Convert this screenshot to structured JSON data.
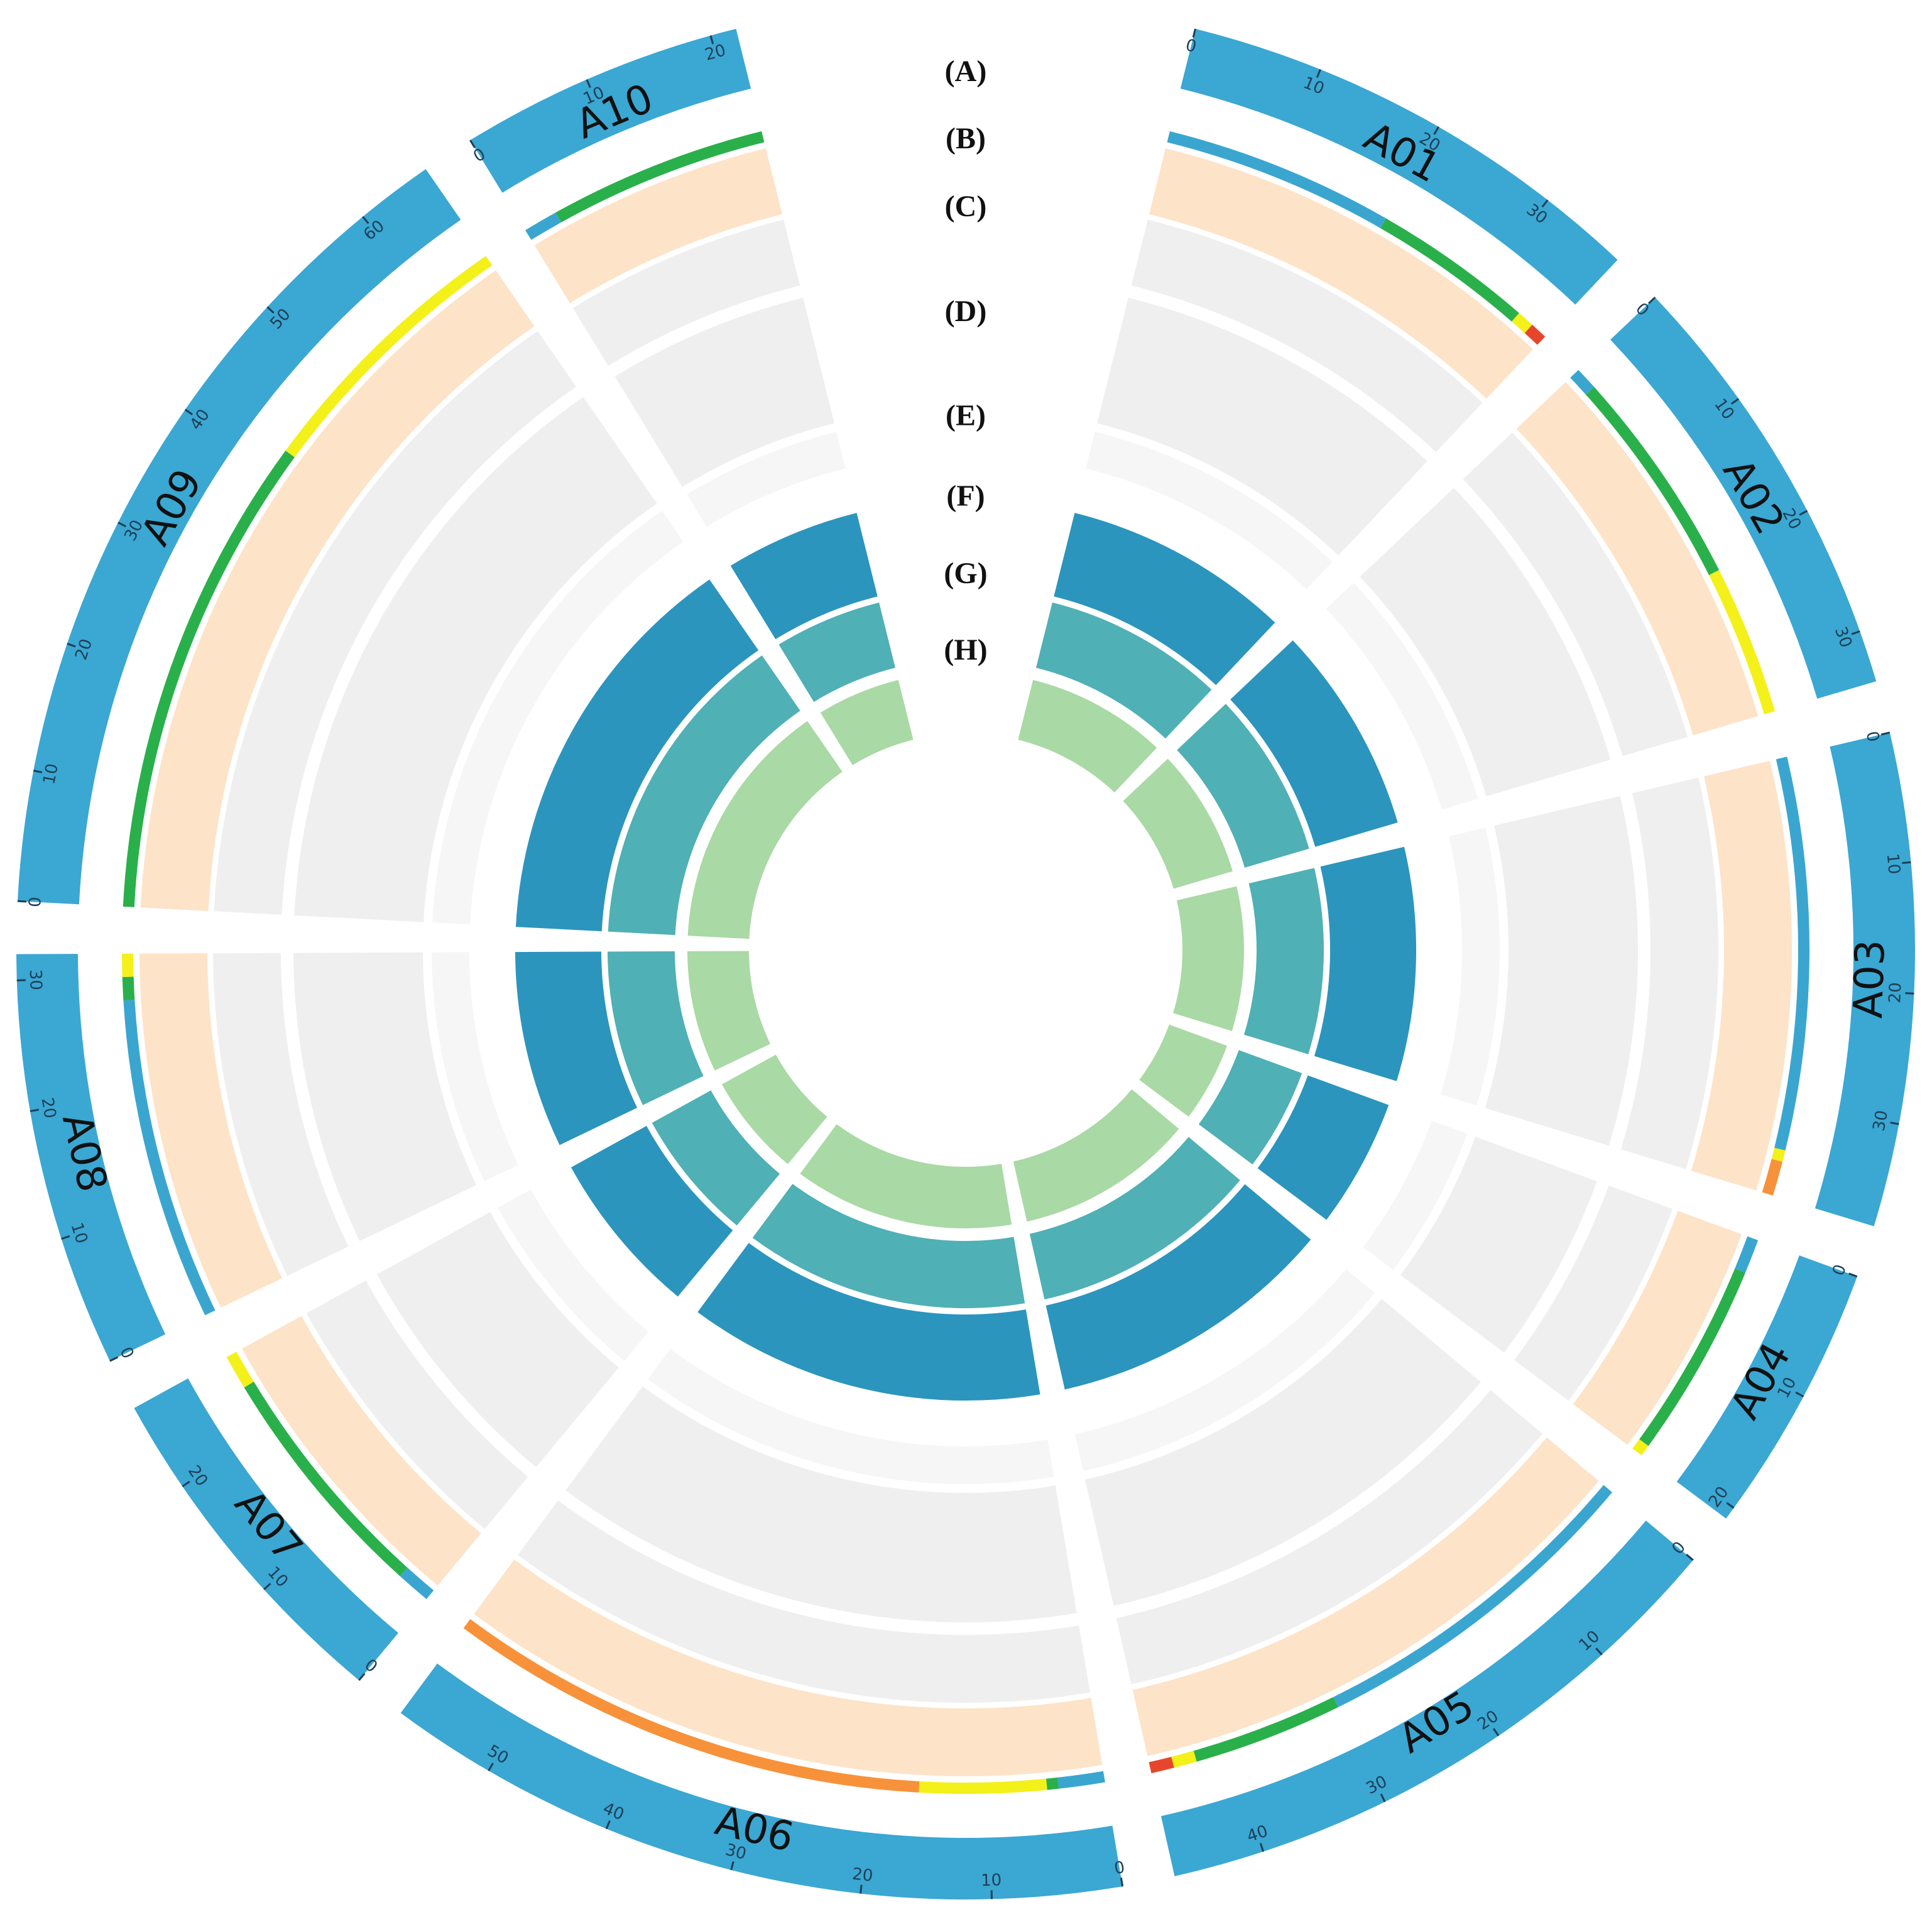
{
  "chart_data": {
    "type": "circos",
    "ideogram_color": "#3ba7d3",
    "track_labels": [
      "(A)",
      "(B)",
      "(C)",
      "(D)",
      "(E)",
      "(F)",
      "(G)",
      "(H)"
    ],
    "chromosomes": [
      {
        "name": "A01",
        "xlim": [
          0,
          37
        ],
        "xticks": [
          0,
          10,
          20,
          30
        ],
        "segments": [
          {
            "start": 0,
            "end": 20,
            "color": "#3aa6d0"
          },
          {
            "start": 20,
            "end": 34,
            "color": "#2ab04a"
          },
          {
            "start": 34,
            "end": 35.5,
            "color": "#f4f01a"
          },
          {
            "start": 35.5,
            "end": 37,
            "color": "#e8462c"
          }
        ]
      },
      {
        "name": "A02",
        "xlim": [
          0,
          34
        ],
        "xticks": [
          0,
          10,
          20,
          30
        ],
        "segments": [
          {
            "start": 0,
            "end": 2,
            "color": "#3aa6d0"
          },
          {
            "start": 2,
            "end": 21,
            "color": "#2ab04a"
          },
          {
            "start": 21,
            "end": 34,
            "color": "#f4f01a"
          }
        ]
      },
      {
        "name": "A03",
        "xlim": [
          0,
          38
        ],
        "xticks": [
          0,
          10,
          20,
          30
        ],
        "segments": [
          {
            "start": 0,
            "end": 34,
            "color": "#3aa6d0"
          },
          {
            "start": 34,
            "end": 35,
            "color": "#f4f01a"
          },
          {
            "start": 35,
            "end": 38,
            "color": "#f7923a"
          }
        ]
      },
      {
        "name": "A04",
        "xlim": [
          0,
          21
        ],
        "xticks": [
          0,
          10,
          20
        ],
        "segments": [
          {
            "start": 0,
            "end": 3,
            "color": "#3aa6d0"
          },
          {
            "start": 3,
            "end": 20,
            "color": "#2ab04a"
          },
          {
            "start": 20,
            "end": 21,
            "color": "#f4f01a"
          }
        ]
      },
      {
        "name": "A05",
        "xlim": [
          0,
          47
        ],
        "xticks": [
          0,
          10,
          20,
          30,
          40
        ],
        "segments": [
          {
            "start": 0,
            "end": 30,
            "color": "#3aa6d0"
          },
          {
            "start": 30,
            "end": 43,
            "color": "#2ab04a"
          },
          {
            "start": 43,
            "end": 45,
            "color": "#f4f01a"
          },
          {
            "start": 45,
            "end": 47,
            "color": "#e8462c"
          }
        ]
      },
      {
        "name": "A06",
        "xlim": [
          0,
          58
        ],
        "xticks": [
          0,
          10,
          20,
          30,
          40,
          50
        ],
        "segments": [
          {
            "start": 0,
            "end": 4,
            "color": "#3aa6d0"
          },
          {
            "start": 4,
            "end": 5,
            "color": "#2ab04a"
          },
          {
            "start": 5,
            "end": 16,
            "color": "#f4f01a"
          },
          {
            "start": 16,
            "end": 58,
            "color": "#f7923a"
          }
        ]
      },
      {
        "name": "A07",
        "xlim": [
          0,
          27
        ],
        "xticks": [
          0,
          10,
          20
        ],
        "segments": [
          {
            "start": 0,
            "end": 3,
            "color": "#3aa6d0"
          },
          {
            "start": 3,
            "end": 24,
            "color": "#2ab04a"
          },
          {
            "start": 24,
            "end": 27,
            "color": "#f4f01a"
          }
        ]
      },
      {
        "name": "A08",
        "xlim": [
          0,
          32
        ],
        "xticks": [
          0,
          10,
          20,
          30
        ],
        "segments": [
          {
            "start": 0,
            "end": 28,
            "color": "#3aa6d0"
          },
          {
            "start": 28,
            "end": 30,
            "color": "#2ab04a"
          },
          {
            "start": 30,
            "end": 32,
            "color": "#f4f01a"
          }
        ]
      },
      {
        "name": "A09",
        "xlim": [
          0,
          66
        ],
        "xticks": [
          0,
          10,
          20,
          30,
          40,
          50,
          60
        ],
        "segments": [
          {
            "start": 0,
            "end": 42,
            "color": "#2ab04a"
          },
          {
            "start": 42,
            "end": 66,
            "color": "#f4f01a"
          }
        ]
      },
      {
        "name": "A10",
        "xlim": [
          0,
          22
        ],
        "xticks": [
          0,
          10,
          20
        ],
        "segments": [
          {
            "start": 0,
            "end": 3,
            "color": "#3aa6d0"
          },
          {
            "start": 3,
            "end": 22,
            "color": "#2ab04a"
          }
        ]
      }
    ]
  }
}
